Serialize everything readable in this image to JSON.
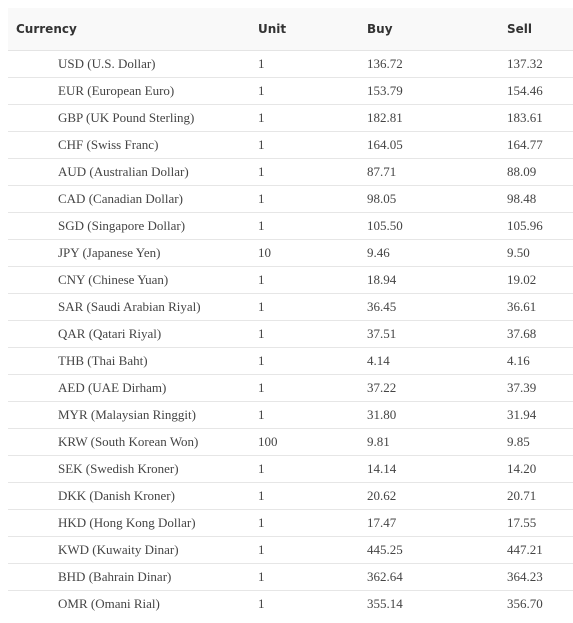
{
  "table": {
    "headers": [
      "Currency",
      "Unit",
      "Buy",
      "Sell"
    ],
    "rows": [
      {
        "currency": "USD (U.S. Dollar)",
        "unit": "1",
        "buy": "136.72",
        "sell": "137.32"
      },
      {
        "currency": "EUR (European Euro)",
        "unit": "1",
        "buy": "153.79",
        "sell": "154.46"
      },
      {
        "currency": "GBP (UK Pound Sterling)",
        "unit": "1",
        "buy": "182.81",
        "sell": "183.61"
      },
      {
        "currency": "CHF (Swiss Franc)",
        "unit": "1",
        "buy": "164.05",
        "sell": "164.77"
      },
      {
        "currency": "AUD (Australian Dollar)",
        "unit": "1",
        "buy": "87.71",
        "sell": "88.09"
      },
      {
        "currency": "CAD (Canadian Dollar)",
        "unit": "1",
        "buy": "98.05",
        "sell": "98.48"
      },
      {
        "currency": "SGD (Singapore Dollar)",
        "unit": "1",
        "buy": "105.50",
        "sell": "105.96"
      },
      {
        "currency": "JPY (Japanese Yen)",
        "unit": "10",
        "buy": "9.46",
        "sell": "9.50"
      },
      {
        "currency": "CNY (Chinese Yuan)",
        "unit": "1",
        "buy": "18.94",
        "sell": "19.02"
      },
      {
        "currency": "SAR (Saudi Arabian Riyal)",
        "unit": "1",
        "buy": "36.45",
        "sell": "36.61"
      },
      {
        "currency": "QAR (Qatari Riyal)",
        "unit": "1",
        "buy": "37.51",
        "sell": "37.68"
      },
      {
        "currency": "THB (Thai Baht)",
        "unit": "1",
        "buy": "4.14",
        "sell": "4.16"
      },
      {
        "currency": "AED (UAE Dirham)",
        "unit": "1",
        "buy": "37.22",
        "sell": "37.39"
      },
      {
        "currency": "MYR (Malaysian Ringgit)",
        "unit": "1",
        "buy": "31.80",
        "sell": "31.94"
      },
      {
        "currency": "KRW (South Korean Won)",
        "unit": "100",
        "buy": "9.81",
        "sell": "9.85"
      },
      {
        "currency": "SEK (Swedish Kroner)",
        "unit": "1",
        "buy": "14.14",
        "sell": "14.20"
      },
      {
        "currency": "DKK (Danish Kroner)",
        "unit": "1",
        "buy": "20.62",
        "sell": "20.71"
      },
      {
        "currency": "HKD (Hong Kong Dollar)",
        "unit": "1",
        "buy": "17.47",
        "sell": "17.55"
      },
      {
        "currency": "KWD (Kuwaity Dinar)",
        "unit": "1",
        "buy": "445.25",
        "sell": "447.21"
      },
      {
        "currency": "BHD (Bahrain Dinar)",
        "unit": "1",
        "buy": "362.64",
        "sell": "364.23"
      },
      {
        "currency": "OMR (Omani Rial)",
        "unit": "1",
        "buy": "355.14",
        "sell": "356.70"
      }
    ]
  }
}
